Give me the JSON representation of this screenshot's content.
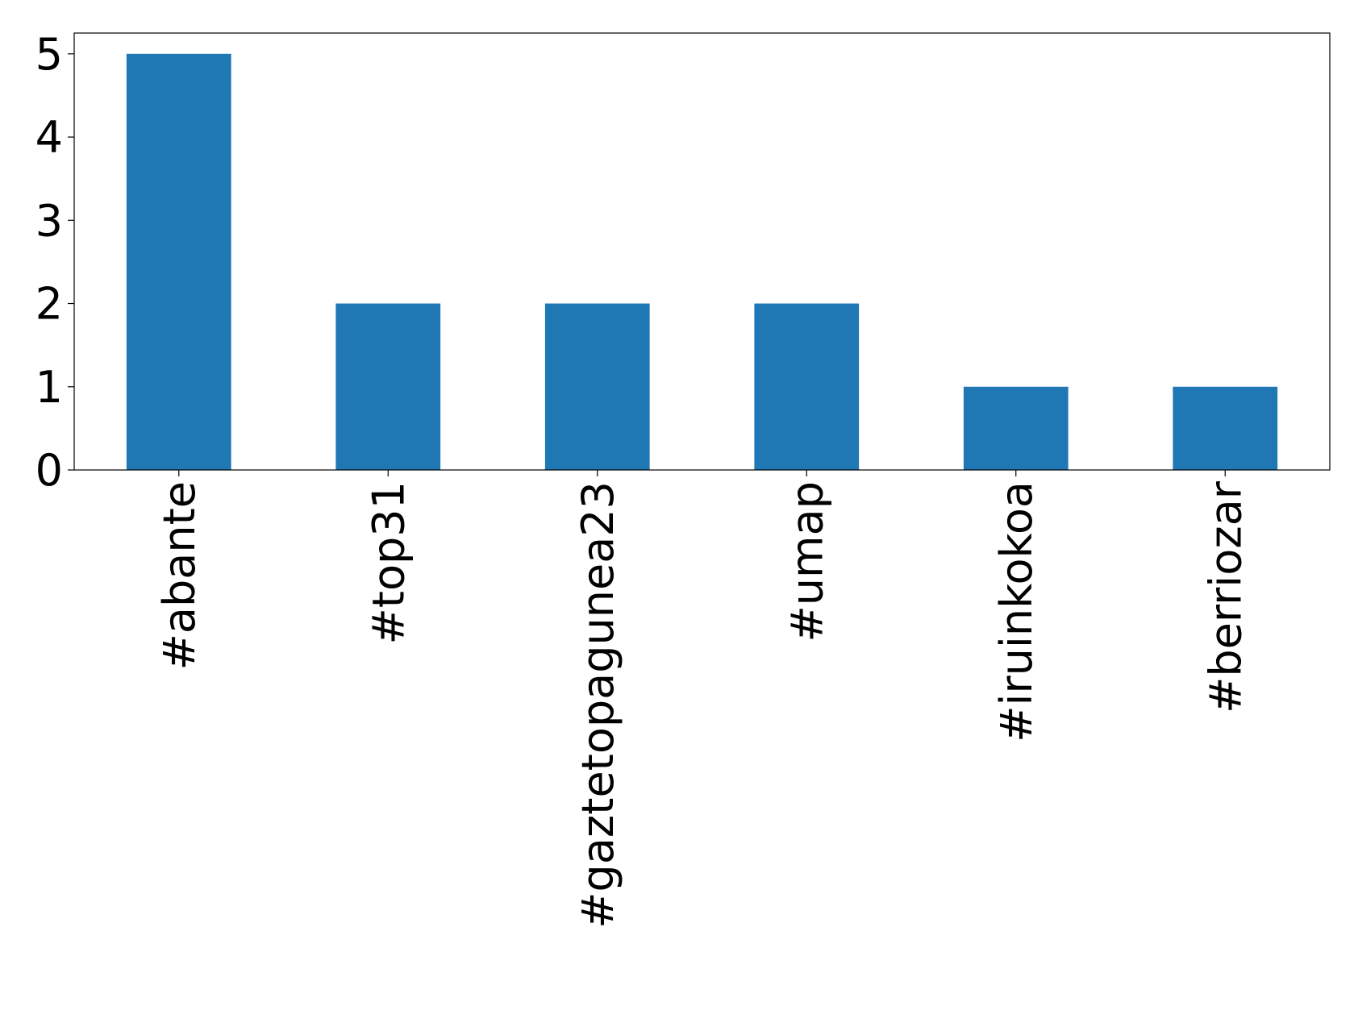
{
  "chart_data": {
    "type": "bar",
    "categories": [
      "#abante",
      "#top31",
      "#gaztetopagunea23",
      "#umap",
      "#iruinkokoa",
      "#berriozar"
    ],
    "values": [
      5,
      2,
      2,
      2,
      1,
      1
    ],
    "color": "#1f77b4",
    "ylim": [
      0,
      5.25
    ],
    "yticks": [
      0,
      1,
      2,
      3,
      4,
      5
    ],
    "grid": false
  }
}
